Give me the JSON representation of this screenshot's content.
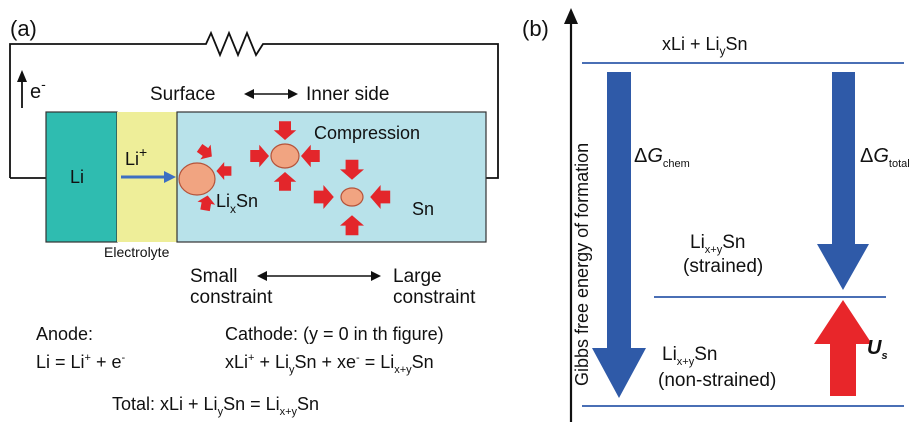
{
  "panel_a": {
    "label": "(a)",
    "electron": {
      "symbol": "e",
      "charge": "-"
    },
    "surface": "Surface",
    "inner_side": "Inner side",
    "compression": "Compression",
    "li_block": "Li",
    "li_ion": {
      "symbol": "Li",
      "charge": "+"
    },
    "lixsn": {
      "base": "Li",
      "sub": "x",
      "rest": "Sn"
    },
    "sn": "Sn",
    "electrolyte": "Electrolyte",
    "small_constraint": [
      "Small",
      "constraint"
    ],
    "large_constraint": [
      "Large",
      "constraint"
    ],
    "anode": {
      "title": "Anode:",
      "eq": {
        "a": "Li = Li",
        "a_sup": "+",
        "b": " + e",
        "b_sup": "-"
      }
    },
    "cathode": {
      "title": "Cathode: (y = 0 in th figure)",
      "eq": {
        "p1": "xLi",
        "p1_sup": "+",
        "p2": " + Li",
        "p2_sub": "y",
        "p3": "Sn + xe",
        "p3_sup": "-",
        "p4": " = Li",
        "p4_sub": "x+y",
        "p5": "Sn"
      }
    },
    "total": {
      "p1": "Total: xLi + Li",
      "p1_sub": "y",
      "p2": "Sn = Li",
      "p2_sub": "x+y",
      "p3": "Sn"
    }
  },
  "panel_b": {
    "label": "(b)",
    "y_axis": "Gibbs free energy of formation",
    "top_level": {
      "p1": "xLi + Li",
      "p1_sub": "y",
      "p2": "Sn"
    },
    "strained": {
      "p1": "Li",
      "p1_sub": "x+y",
      "p2": "Sn",
      "line2": "(strained)"
    },
    "non_strained": {
      "p1": "Li",
      "p1_sub": "x+y",
      "p2": "Sn",
      "line2": "(non-strained)"
    },
    "dg_chem": {
      "delta": "Δ",
      "g": "G",
      "sub": "chem"
    },
    "dg_total": {
      "delta": "Δ",
      "g": "G",
      "sub": "total"
    },
    "us": {
      "u": "U",
      "sub": "s"
    },
    "colors": {
      "arrow_blue": "#2f5aa8",
      "arrow_red": "#e8262a",
      "line_blue": "#4a6fb5"
    }
  },
  "colors": {
    "li_block": "#2fbcb0",
    "electrolyte": "#eeee99",
    "sn_block": "#b8e2ea",
    "particle": "#f1a481",
    "compression_arrow": "#e3262b",
    "ion_arrow": "#3d6fc2"
  }
}
